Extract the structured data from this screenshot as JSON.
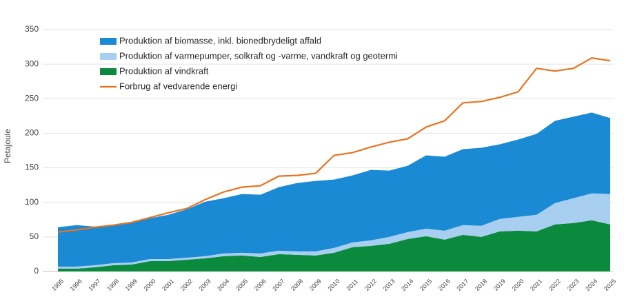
{
  "chart_data": {
    "type": "area",
    "y_label": "Petajoule",
    "x": [
      "1995",
      "1996",
      "1997",
      "1998",
      "1999",
      "2000",
      "2001",
      "2002",
      "2003",
      "2004",
      "2005",
      "2006",
      "2007",
      "2008",
      "2009",
      "2010",
      "2011",
      "2012",
      "2013",
      "2014",
      "2015",
      "2016",
      "2017",
      "2018",
      "2019",
      "2020",
      "2021",
      "2022",
      "2023",
      "2024",
      "2025"
    ],
    "ylim": [
      0,
      350
    ],
    "yticks": [
      0,
      50,
      100,
      150,
      200,
      250,
      300,
      350
    ],
    "grid": true,
    "stacked": true,
    "legend": "top-left",
    "series": [
      {
        "name": "Produktion af biomasse, inkl. bionedbrydeligt affald",
        "color": "#1a8ad4",
        "type": "area",
        "values": [
          57,
          60,
          56,
          55,
          57,
          59,
          64,
          70,
          79,
          80,
          85,
          85,
          92,
          99,
          102,
          99,
          97,
          102,
          96,
          96,
          106,
          107,
          110,
          113,
          108,
          112,
          117,
          119,
          118,
          117,
          110
        ]
      },
      {
        "name": "Produktion af varmepumper, solkraft og -varme, vandkraft og geotermi",
        "color": "#a8cef0",
        "type": "area",
        "values": [
          3,
          3,
          3,
          3,
          3,
          3,
          3,
          3,
          3,
          4,
          4,
          5,
          5,
          5,
          6,
          7,
          7,
          8,
          10,
          10,
          11,
          13,
          14,
          16,
          18,
          20,
          24,
          31,
          36,
          39,
          44
        ]
      },
      {
        "name": "Produktion af vindkraft",
        "color": "#0b8a3e",
        "type": "area",
        "values": [
          4,
          4,
          6,
          9,
          10,
          15,
          15,
          17,
          19,
          22,
          23,
          21,
          25,
          24,
          23,
          27,
          35,
          37,
          40,
          47,
          51,
          46,
          53,
          50,
          58,
          59,
          58,
          68,
          70,
          74,
          68
        ]
      },
      {
        "name": "Forbrug af vedvarende energi",
        "color": "#e8731f",
        "type": "line",
        "values": [
          57,
          60,
          64,
          67,
          71,
          78,
          85,
          91,
          104,
          115,
          122,
          124,
          138,
          139,
          142,
          168,
          172,
          180,
          187,
          192,
          209,
          218,
          244,
          246,
          252,
          260,
          294,
          290,
          294,
          309,
          305
        ]
      }
    ]
  }
}
